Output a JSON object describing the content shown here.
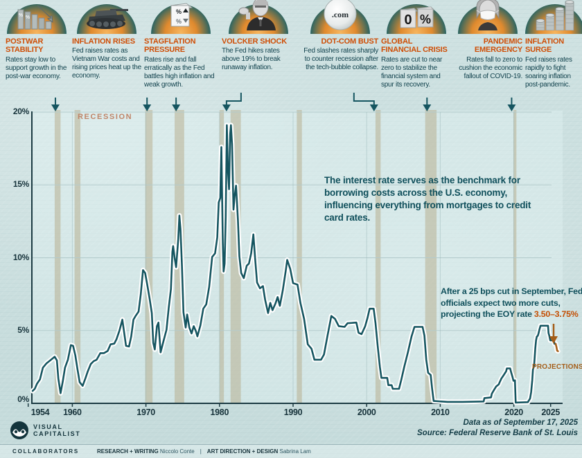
{
  "cards": [
    {
      "title": "POSTWAR STABILITY",
      "body": "Rates stay low to support growth in the post-war economy.",
      "icon": "declining-percent-bars"
    },
    {
      "title": "INFLATION RISES",
      "body": "Fed raises rates as Vietnam War costs and rising prices heat up the economy.",
      "icon": "tank"
    },
    {
      "title": "STAGFLATION PRESSURE",
      "body": "Rates rise and fall erratically as the Fed battles high inflation and weak growth.",
      "icon": "percent-cube"
    },
    {
      "title": "VOLCKER SHOCK",
      "body": "The Fed hikes rates above 19% to break runaway inflation.",
      "icon": "volcker-portrait"
    },
    {
      "title": "DOT-COM BUST",
      "body": "Fed slashes rates sharply to counter recession after the tech-bubble collapse.",
      "icon": "dotcom-bubble"
    },
    {
      "title": "GLOBAL FINANCIAL CRISIS",
      "body": "Rates are cut to near zero to stabilize the financial system and spur its recovery.",
      "icon": "zero-percent-blocks"
    },
    {
      "title": "PANDEMIC EMERGENCY",
      "body": "Rates fall to zero to cushion the economic fallout of COVID-19.",
      "icon": "franklin-mask"
    },
    {
      "title": "INFLATION SURGE",
      "body": "Fed raises rates rapidly to fight soaring inflation post-pandemic.",
      "icon": "coin-stacks"
    }
  ],
  "chart_data": {
    "type": "line",
    "xlabel": "",
    "ylabel": "",
    "ylim": [
      0,
      20
    ],
    "xlim": [
      1954,
      2026
    ],
    "grid": true,
    "yticks": [
      {
        "label": "20%",
        "value": 20
      },
      {
        "label": "15%",
        "value": 15
      },
      {
        "label": "10%",
        "value": 10
      },
      {
        "label": "5%",
        "value": 5
      },
      {
        "label": "0%",
        "value": 0
      }
    ],
    "xticks": [
      {
        "label": "1954",
        "value": 1954
      },
      {
        "label": "1960",
        "value": 1960
      },
      {
        "label": "1970",
        "value": 1970
      },
      {
        "label": "1980",
        "value": 1980
      },
      {
        "label": "1990",
        "value": 1990
      },
      {
        "label": "2000",
        "value": 2000
      },
      {
        "label": "2010",
        "value": 2010
      },
      {
        "label": "2020",
        "value": 2020
      },
      {
        "label": "2025",
        "value": 2025
      }
    ],
    "recession_label": "RECESSION",
    "recessions": [
      [
        1957.6,
        1958.4
      ],
      [
        1960.3,
        1961.1
      ],
      [
        1969.9,
        1970.9
      ],
      [
        1973.9,
        1975.2
      ],
      [
        1980.0,
        1980.6
      ],
      [
        1981.5,
        1982.9
      ],
      [
        1990.5,
        1991.2
      ],
      [
        2001.2,
        2001.9
      ],
      [
        2007.95,
        2009.5
      ],
      [
        2019.95,
        2020.35
      ]
    ],
    "event_arrows": [
      {
        "year": 1957.7,
        "elbow_dx": 0
      },
      {
        "year": 1970.15,
        "elbow_dx": 0
      },
      {
        "year": 1974.1,
        "elbow_dx": 0
      },
      {
        "year": 1980.95,
        "elbow_dx": 21
      },
      {
        "year": 2001.0,
        "elbow_dx": -29
      },
      {
        "year": 2008.2,
        "elbow_dx": 0
      },
      {
        "year": 2019.7,
        "elbow_dx": 0
      }
    ],
    "series": [
      {
        "name": "federal_funds_rate",
        "color": "#155560",
        "points": [
          [
            1954.6,
            0.85
          ],
          [
            1954.9,
            1.0
          ],
          [
            1955.2,
            1.35
          ],
          [
            1955.6,
            1.65
          ],
          [
            1956.0,
            2.45
          ],
          [
            1956.5,
            2.75
          ],
          [
            1957.0,
            2.95
          ],
          [
            1957.6,
            3.2
          ],
          [
            1957.9,
            2.95
          ],
          [
            1958.1,
            1.7
          ],
          [
            1958.4,
            0.7
          ],
          [
            1958.7,
            1.5
          ],
          [
            1959.0,
            2.45
          ],
          [
            1959.4,
            3.0
          ],
          [
            1959.8,
            4.0
          ],
          [
            1960.1,
            3.95
          ],
          [
            1960.4,
            3.3
          ],
          [
            1960.7,
            2.35
          ],
          [
            1961.0,
            1.45
          ],
          [
            1961.4,
            1.2
          ],
          [
            1961.8,
            1.75
          ],
          [
            1962.1,
            2.2
          ],
          [
            1962.5,
            2.7
          ],
          [
            1962.9,
            2.9
          ],
          [
            1963.3,
            3.0
          ],
          [
            1963.8,
            3.45
          ],
          [
            1964.3,
            3.45
          ],
          [
            1964.8,
            3.6
          ],
          [
            1965.2,
            4.05
          ],
          [
            1965.7,
            4.1
          ],
          [
            1966.0,
            4.4
          ],
          [
            1966.4,
            5.0
          ],
          [
            1966.8,
            5.75
          ],
          [
            1967.0,
            5.0
          ],
          [
            1967.3,
            3.95
          ],
          [
            1967.7,
            3.9
          ],
          [
            1968.0,
            4.6
          ],
          [
            1968.3,
            5.75
          ],
          [
            1968.6,
            6.0
          ],
          [
            1969.0,
            6.3
          ],
          [
            1969.3,
            7.5
          ],
          [
            1969.6,
            9.15
          ],
          [
            1969.9,
            8.95
          ],
          [
            1970.2,
            8.1
          ],
          [
            1970.5,
            7.2
          ],
          [
            1970.8,
            6.2
          ],
          [
            1971.0,
            4.15
          ],
          [
            1971.2,
            3.7
          ],
          [
            1971.5,
            5.3
          ],
          [
            1971.7,
            5.55
          ],
          [
            1972.0,
            3.5
          ],
          [
            1972.4,
            4.3
          ],
          [
            1972.8,
            5.05
          ],
          [
            1973.1,
            6.55
          ],
          [
            1973.4,
            7.85
          ],
          [
            1973.6,
            10.4
          ],
          [
            1973.7,
            10.8
          ],
          [
            1973.9,
            10.0
          ],
          [
            1974.1,
            9.35
          ],
          [
            1974.4,
            11.3
          ],
          [
            1974.55,
            12.9
          ],
          [
            1974.7,
            11.95
          ],
          [
            1974.9,
            9.45
          ],
          [
            1975.1,
            6.25
          ],
          [
            1975.4,
            5.2
          ],
          [
            1975.6,
            6.1
          ],
          [
            1975.9,
            5.2
          ],
          [
            1976.2,
            4.8
          ],
          [
            1976.5,
            5.3
          ],
          [
            1976.8,
            4.95
          ],
          [
            1977.0,
            4.6
          ],
          [
            1977.4,
            5.35
          ],
          [
            1977.8,
            6.5
          ],
          [
            1978.2,
            6.8
          ],
          [
            1978.6,
            8.0
          ],
          [
            1979.0,
            10.05
          ],
          [
            1979.4,
            10.3
          ],
          [
            1979.7,
            11.4
          ],
          [
            1979.9,
            13.8
          ],
          [
            1980.1,
            14.1
          ],
          [
            1980.25,
            17.6
          ],
          [
            1980.45,
            11.0
          ],
          [
            1980.55,
            9.05
          ],
          [
            1980.7,
            9.6
          ],
          [
            1980.85,
            12.8
          ],
          [
            1981.0,
            19.1
          ],
          [
            1981.15,
            16.0
          ],
          [
            1981.3,
            14.7
          ],
          [
            1981.45,
            18.5
          ],
          [
            1981.55,
            19.1
          ],
          [
            1981.7,
            17.8
          ],
          [
            1981.9,
            13.3
          ],
          [
            1982.05,
            14.2
          ],
          [
            1982.25,
            14.95
          ],
          [
            1982.5,
            12.6
          ],
          [
            1982.7,
            10.1
          ],
          [
            1982.95,
            8.95
          ],
          [
            1983.3,
            8.6
          ],
          [
            1983.7,
            9.45
          ],
          [
            1984.0,
            9.6
          ],
          [
            1984.3,
            10.3
          ],
          [
            1984.6,
            11.6
          ],
          [
            1984.85,
            9.9
          ],
          [
            1985.1,
            8.3
          ],
          [
            1985.5,
            7.9
          ],
          [
            1985.9,
            8.05
          ],
          [
            1986.2,
            7.1
          ],
          [
            1986.6,
            6.2
          ],
          [
            1986.9,
            6.9
          ],
          [
            1987.2,
            6.4
          ],
          [
            1987.6,
            6.85
          ],
          [
            1987.9,
            7.3
          ],
          [
            1988.2,
            6.7
          ],
          [
            1988.6,
            7.75
          ],
          [
            1989.0,
            9.1
          ],
          [
            1989.2,
            9.85
          ],
          [
            1989.6,
            9.25
          ],
          [
            1990.0,
            8.25
          ],
          [
            1990.6,
            8.15
          ],
          [
            1991.0,
            6.9
          ],
          [
            1991.5,
            5.8
          ],
          [
            1992.0,
            4.05
          ],
          [
            1992.5,
            3.75
          ],
          [
            1992.9,
            3.0
          ],
          [
            1993.8,
            3.0
          ],
          [
            1994.2,
            3.35
          ],
          [
            1994.7,
            4.7
          ],
          [
            1995.2,
            6.0
          ],
          [
            1995.7,
            5.8
          ],
          [
            1996.2,
            5.3
          ],
          [
            1997.0,
            5.25
          ],
          [
            1997.4,
            5.5
          ],
          [
            1998.6,
            5.55
          ],
          [
            1998.9,
            4.85
          ],
          [
            1999.3,
            4.75
          ],
          [
            1999.8,
            5.3
          ],
          [
            2000.1,
            5.85
          ],
          [
            2000.4,
            6.5
          ],
          [
            2000.95,
            6.5
          ],
          [
            2001.2,
            5.5
          ],
          [
            2001.5,
            3.95
          ],
          [
            2001.8,
            2.5
          ],
          [
            2002.0,
            1.75
          ],
          [
            2002.8,
            1.75
          ],
          [
            2002.95,
            1.25
          ],
          [
            2003.4,
            1.25
          ],
          [
            2003.55,
            1.0
          ],
          [
            2004.4,
            1.0
          ],
          [
            2004.7,
            1.6
          ],
          [
            2005.1,
            2.5
          ],
          [
            2005.6,
            3.5
          ],
          [
            2006.1,
            4.6
          ],
          [
            2006.5,
            5.25
          ],
          [
            2007.6,
            5.25
          ],
          [
            2007.85,
            4.65
          ],
          [
            2008.1,
            3.0
          ],
          [
            2008.35,
            2.1
          ],
          [
            2008.7,
            1.95
          ],
          [
            2008.9,
            1.0
          ],
          [
            2009.1,
            0.16
          ],
          [
            2011.0,
            0.1
          ],
          [
            2013.0,
            0.1
          ],
          [
            2015.9,
            0.13
          ],
          [
            2016.0,
            0.36
          ],
          [
            2016.9,
            0.41
          ],
          [
            2017.0,
            0.66
          ],
          [
            2017.3,
            0.91
          ],
          [
            2017.6,
            1.16
          ],
          [
            2017.95,
            1.3
          ],
          [
            2018.05,
            1.42
          ],
          [
            2018.3,
            1.7
          ],
          [
            2018.6,
            1.92
          ],
          [
            2018.95,
            2.2
          ],
          [
            2019.05,
            2.4
          ],
          [
            2019.5,
            2.4
          ],
          [
            2019.65,
            2.1
          ],
          [
            2019.8,
            1.85
          ],
          [
            2019.95,
            1.55
          ],
          [
            2020.15,
            1.58
          ],
          [
            2020.25,
            0.05
          ],
          [
            2021.9,
            0.08
          ],
          [
            2022.2,
            0.33
          ],
          [
            2022.35,
            0.77
          ],
          [
            2022.5,
            1.58
          ],
          [
            2022.6,
            2.33
          ],
          [
            2022.75,
            2.56
          ],
          [
            2022.82,
            3.08
          ],
          [
            2022.92,
            3.78
          ],
          [
            2023.02,
            4.33
          ],
          [
            2023.12,
            4.57
          ],
          [
            2023.27,
            4.65
          ],
          [
            2023.37,
            4.83
          ],
          [
            2023.47,
            5.06
          ],
          [
            2023.62,
            5.33
          ],
          [
            2024.65,
            5.33
          ],
          [
            2024.72,
            4.83
          ],
          [
            2024.82,
            4.64
          ],
          [
            2024.95,
            4.33
          ],
          [
            2025.45,
            4.33
          ],
          [
            2025.52,
            4.09
          ],
          [
            2025.68,
            4.09
          ]
        ]
      },
      {
        "name": "projections",
        "color": "#a45d18",
        "points": [
          [
            2025.68,
            4.09
          ],
          [
            2025.78,
            3.9
          ],
          [
            2025.88,
            3.62
          ],
          [
            2026.0,
            3.58
          ]
        ]
      }
    ]
  },
  "annotations": {
    "benchmark": "The interest rate serves as the benchmark for borrowing costs across the U.S. economy, influencing everything from mortgages to credit card rates.",
    "projection_text": "After a 25 bps cut in September, Fed officials expect two more cuts, projecting the EOY rate ",
    "projection_highlight": "3.50–3.75%",
    "projections_label": "PROJECTIONS"
  },
  "footer": {
    "source_line1": "Data as of September 17, 2025",
    "source_line2": "Source: Federal Reserve Bank of St. Louis",
    "logo_line1": "VISUAL",
    "logo_line2": "CAPITALIST",
    "credits_label": "COLLABORATORS",
    "credit1_role": "RESEARCH + WRITING",
    "credit1_name": "Niccolo Conte",
    "credits_separator": "|",
    "credit2_role": "ART DIRECTION + DESIGN",
    "credit2_name": "Sabrina Lam"
  },
  "colors": {
    "background": "#cde1e1",
    "card_title": "#cf4e06",
    "body_text": "#11424d",
    "line": "#155560",
    "line_halo": "#ffffff",
    "projection": "#a45d18",
    "highlight_orange": "#c44f04",
    "recession_band": "rgba(178,164,126,0.45)",
    "recession_label": "#c08568",
    "axis": "#1b3a42",
    "grid": "#b3cbcc",
    "arch_teal": "#1d6266",
    "arch_glow": "#e08a2e"
  }
}
